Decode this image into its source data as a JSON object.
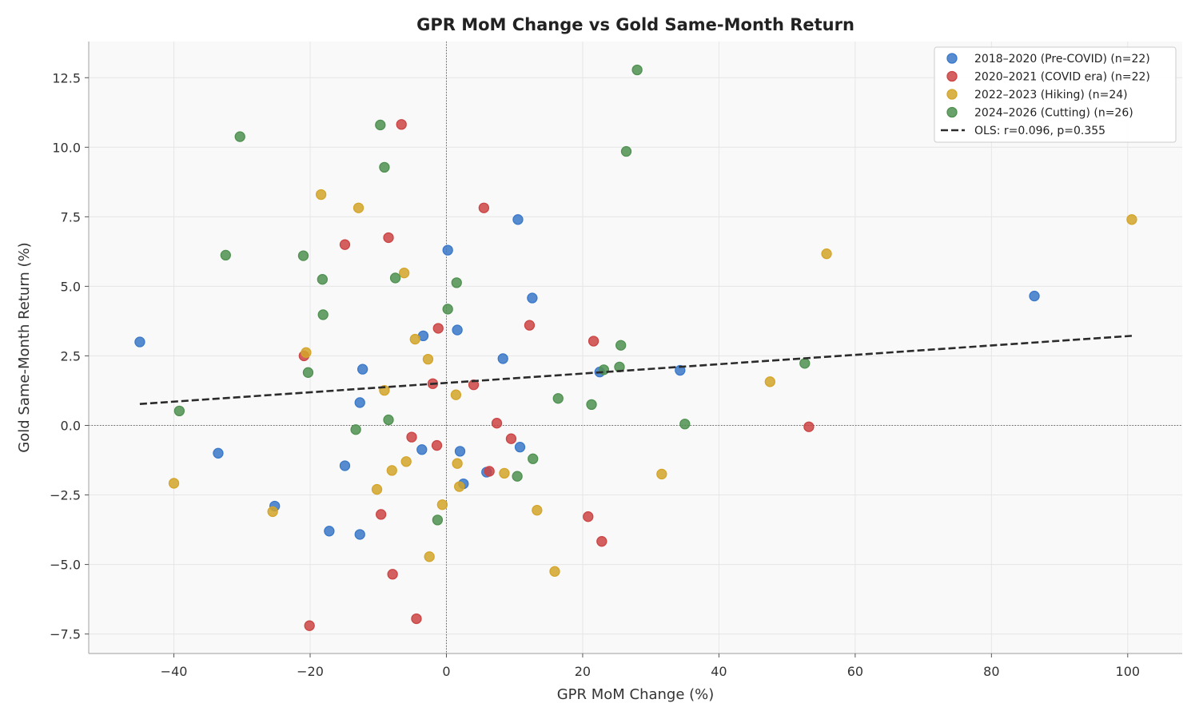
{
  "chart_data": {
    "type": "scatter",
    "title": "GPR MoM Change vs Gold Same-Month Return",
    "xlabel": "GPR MoM Change (%)",
    "ylabel": "Gold Same-Month Return (%)",
    "xlim": [
      -52.5,
      108
    ],
    "ylim": [
      -8.2,
      13.8
    ],
    "xticks": [
      -40,
      -20,
      0,
      20,
      40,
      60,
      80,
      100
    ],
    "yticks": [
      -7.5,
      -5.0,
      -2.5,
      0.0,
      2.5,
      5.0,
      7.5,
      10.0,
      12.5
    ],
    "xtick_labels": [
      "−40",
      "−20",
      "0",
      "20",
      "40",
      "60",
      "80",
      "100"
    ],
    "ytick_labels": [
      "−7.5",
      "−5.0",
      "−2.5",
      "0.0",
      "2.5",
      "5.0",
      "7.5",
      "10.0",
      "12.5"
    ],
    "grid": true,
    "legend_position": "top-right",
    "reference_lines": {
      "x": 0,
      "y": 0
    },
    "series": [
      {
        "name": "2018–2020 (Pre-COVID) (n=22)",
        "color": "#3a78c9",
        "points": [
          [
            -45,
            3.0
          ],
          [
            -33.5,
            -1.0
          ],
          [
            -25.2,
            -2.9
          ],
          [
            -17.2,
            -3.8
          ],
          [
            -14.9,
            -1.45
          ],
          [
            -12.7,
            0.82
          ],
          [
            -12.7,
            -3.92
          ],
          [
            -12.3,
            2.02
          ],
          [
            -3.6,
            -0.87
          ],
          [
            -3.4,
            3.22
          ],
          [
            0.2,
            6.3
          ],
          [
            1.6,
            3.43
          ],
          [
            2.0,
            -0.93
          ],
          [
            2.5,
            -2.1
          ],
          [
            5.9,
            -1.68
          ],
          [
            8.3,
            2.4
          ],
          [
            10.5,
            7.4
          ],
          [
            10.8,
            -0.78
          ],
          [
            12.6,
            4.58
          ],
          [
            22.5,
            1.92
          ],
          [
            34.3,
            1.98
          ],
          [
            86.3,
            4.65
          ]
        ]
      },
      {
        "name": "2020–2021 (COVID era) (n=22)",
        "color": "#cc4444",
        "points": [
          [
            -20.9,
            2.5
          ],
          [
            -20.1,
            -7.2
          ],
          [
            -14.9,
            6.5
          ],
          [
            -9.6,
            -3.2
          ],
          [
            -8.5,
            6.75
          ],
          [
            -7.9,
            -5.35
          ],
          [
            -6.6,
            10.82
          ],
          [
            -5.1,
            -0.42
          ],
          [
            -4.4,
            -6.95
          ],
          [
            -2.0,
            1.5
          ],
          [
            -1.4,
            -0.72
          ],
          [
            -1.2,
            3.49
          ],
          [
            4.0,
            1.46
          ],
          [
            5.5,
            7.82
          ],
          [
            6.3,
            -1.65
          ],
          [
            7.4,
            0.08
          ],
          [
            9.5,
            -0.48
          ],
          [
            12.2,
            3.6
          ],
          [
            20.8,
            -3.28
          ],
          [
            21.6,
            3.03
          ],
          [
            22.8,
            -4.17
          ],
          [
            53.2,
            -0.05
          ]
        ]
      },
      {
        "name": "2022–2023 (Hiking) (n=24)",
        "color": "#d4a52a",
        "points": [
          [
            -40.0,
            -2.08
          ],
          [
            -25.5,
            -3.1
          ],
          [
            -20.6,
            2.62
          ],
          [
            -18.4,
            8.3
          ],
          [
            -12.9,
            7.82
          ],
          [
            -10.2,
            -2.3
          ],
          [
            -9.1,
            1.26
          ],
          [
            -8.0,
            -1.62
          ],
          [
            -5.9,
            -1.3
          ],
          [
            -6.2,
            5.48
          ],
          [
            -4.6,
            3.1
          ],
          [
            -2.7,
            2.38
          ],
          [
            -0.6,
            -2.85
          ],
          [
            -2.5,
            -4.72
          ],
          [
            1.4,
            1.1
          ],
          [
            1.6,
            -1.37
          ],
          [
            1.9,
            -2.2
          ],
          [
            8.5,
            -1.72
          ],
          [
            13.3,
            -3.05
          ],
          [
            15.9,
            -5.25
          ],
          [
            31.6,
            -1.75
          ],
          [
            47.5,
            1.57
          ],
          [
            55.8,
            6.17
          ],
          [
            100.6,
            7.4
          ]
        ]
      },
      {
        "name": "2024–2026 (Cutting) (n=26)",
        "color": "#4f9150",
        "points": [
          [
            -39.2,
            0.52
          ],
          [
            -32.4,
            6.12
          ],
          [
            -30.3,
            10.38
          ],
          [
            -21.0,
            6.1
          ],
          [
            -20.3,
            1.9
          ],
          [
            -18.2,
            5.25
          ],
          [
            -18.1,
            3.98
          ],
          [
            -13.3,
            -0.15
          ],
          [
            -9.7,
            10.8
          ],
          [
            -9.1,
            9.28
          ],
          [
            -8.5,
            0.2
          ],
          [
            -7.5,
            5.3
          ],
          [
            -1.3,
            -3.4
          ],
          [
            0.2,
            4.18
          ],
          [
            1.5,
            5.13
          ],
          [
            10.4,
            -1.83
          ],
          [
            12.7,
            -1.2
          ],
          [
            16.4,
            0.97
          ],
          [
            21.3,
            0.75
          ],
          [
            23.1,
            2.0
          ],
          [
            25.4,
            2.1
          ],
          [
            25.6,
            2.88
          ],
          [
            26.4,
            9.85
          ],
          [
            28.0,
            12.78
          ],
          [
            35.0,
            0.05
          ],
          [
            52.6,
            2.23
          ]
        ]
      }
    ],
    "regression": {
      "name": "OLS: r=0.096, p=0.355",
      "color": "#2b2b2b",
      "x": [
        -45,
        100.6
      ],
      "y": [
        0.77,
        3.22
      ]
    }
  }
}
